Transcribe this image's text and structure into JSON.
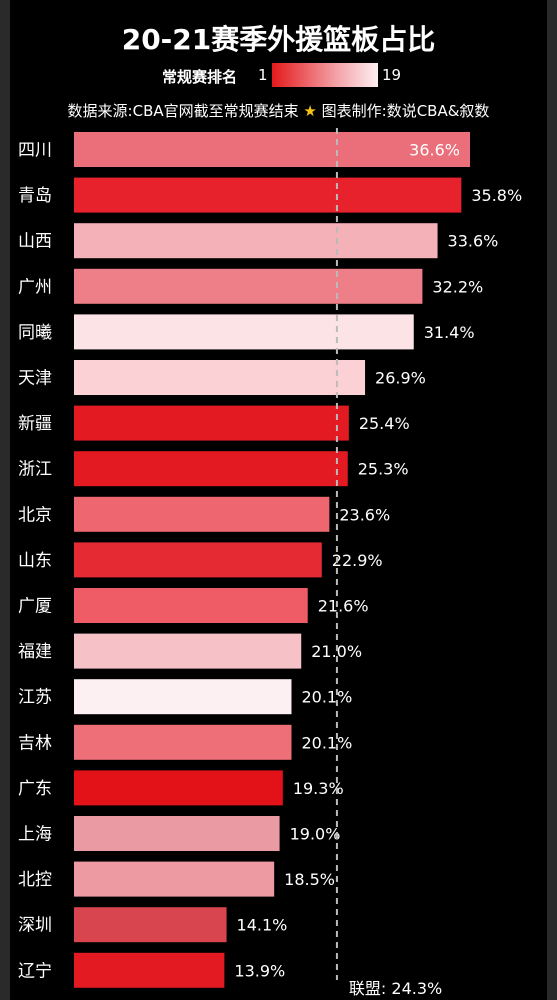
{
  "chart_data": {
    "type": "bar",
    "orientation": "horizontal",
    "title": "20-21赛季外援篮板占比",
    "color_legend": {
      "label": "常规赛排名",
      "min": "1",
      "max": "19"
    },
    "source_note": {
      "prefix": "数据来源:CBA官网截至常规赛结束",
      "star": "★",
      "suffix": "图表制作:数说CBA&叙数"
    },
    "categories": [
      "四川",
      "青岛",
      "山西",
      "广州",
      "同曦",
      "天津",
      "新疆",
      "浙江",
      "北京",
      "山东",
      "广厦",
      "福建",
      "江苏",
      "吉林",
      "广东",
      "上海",
      "北控",
      "深圳",
      "辽宁"
    ],
    "values": [
      36.6,
      35.8,
      33.6,
      32.2,
      31.4,
      26.9,
      25.4,
      25.3,
      23.6,
      22.9,
      21.6,
      21.0,
      20.1,
      20.1,
      19.3,
      19.0,
      18.5,
      14.1,
      13.9
    ],
    "labels": [
      "36.6%",
      "35.8%",
      "33.6%",
      "32.2%",
      "31.4%",
      "26.9%",
      "25.4%",
      "25.3%",
      "23.6%",
      "22.9%",
      "21.6%",
      "21.0%",
      "20.1%",
      "20.1%",
      "19.3%",
      "19.0%",
      "18.5%",
      "14.1%",
      "13.9%"
    ],
    "colors": [
      "#ea6f7a",
      "#e8222c",
      "#f4b1b8",
      "#ee7e87",
      "#fbe3e6",
      "#fbd1d6",
      "#e31a22",
      "#e31a22",
      "#ee6670",
      "#e62a33",
      "#ef5c66",
      "#f6c1c7",
      "#fdf0f2",
      "#ef6f79",
      "#e31218",
      "#e99aa2",
      "#ee9aa2",
      "#d9454e",
      "#e31a22"
    ],
    "average": {
      "value": 24.3,
      "label": "联盟: 24.3%"
    },
    "xlim": [
      0,
      40
    ]
  }
}
